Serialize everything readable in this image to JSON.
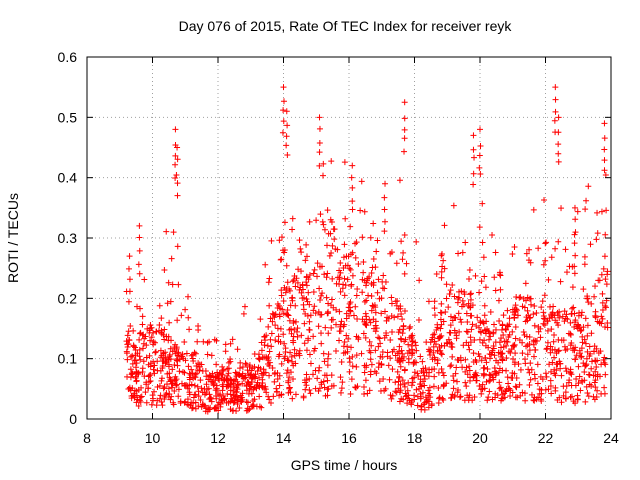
{
  "chart_data": {
    "type": "scatter",
    "title": "Day 076 of 2015, Rate Of TEC Index for receiver reyk",
    "xlabel": "GPS time / hours",
    "ylabel": "ROTI / TECUs",
    "xlim": [
      8,
      24
    ],
    "ylim": [
      0,
      0.6
    ],
    "xticks": [
      8,
      10,
      12,
      14,
      16,
      18,
      20,
      22,
      24
    ],
    "yticks": [
      0,
      0.1,
      0.2,
      0.3,
      0.4,
      0.5,
      0.6
    ],
    "xtick_labels": [
      "8",
      "10",
      "12",
      "14",
      "16",
      "18",
      "20",
      "22",
      "24"
    ],
    "ytick_labels": [
      "0",
      "0.1",
      "0.2",
      "0.3",
      "0.4",
      "0.5",
      "0.6"
    ],
    "grid": true,
    "marker": "+",
    "color": "#ff0000",
    "x_data_range": [
      9.2,
      23.9
    ],
    "envelope": [
      {
        "x": 9.2,
        "typical": 0.08,
        "spread": 0.12
      },
      {
        "x": 10,
        "typical": 0.09,
        "spread": 0.12
      },
      {
        "x": 10.7,
        "typical": 0.08,
        "spread": 0.2
      },
      {
        "x": 11.5,
        "typical": 0.05,
        "spread": 0.09
      },
      {
        "x": 12.5,
        "typical": 0.04,
        "spread": 0.08
      },
      {
        "x": 13.3,
        "typical": 0.07,
        "spread": 0.13
      },
      {
        "x": 14,
        "typical": 0.13,
        "spread": 0.22
      },
      {
        "x": 15,
        "typical": 0.14,
        "spread": 0.2
      },
      {
        "x": 16,
        "typical": 0.16,
        "spread": 0.2
      },
      {
        "x": 17,
        "typical": 0.14,
        "spread": 0.18
      },
      {
        "x": 17.7,
        "typical": 0.1,
        "spread": 0.22
      },
      {
        "x": 18.3,
        "typical": 0.05,
        "spread": 0.15
      },
      {
        "x": 19,
        "typical": 0.13,
        "spread": 0.16
      },
      {
        "x": 20,
        "typical": 0.12,
        "spread": 0.2
      },
      {
        "x": 20.5,
        "typical": 0.09,
        "spread": 0.15
      },
      {
        "x": 21,
        "typical": 0.12,
        "spread": 0.18
      },
      {
        "x": 22,
        "typical": 0.11,
        "spread": 0.2
      },
      {
        "x": 23,
        "typical": 0.1,
        "spread": 0.18
      },
      {
        "x": 23.9,
        "typical": 0.15,
        "spread": 0.25
      }
    ],
    "peaks": [
      {
        "x": 9.3,
        "y": 0.27
      },
      {
        "x": 9.6,
        "y": 0.32
      },
      {
        "x": 10.7,
        "y": 0.48
      },
      {
        "x": 10.75,
        "y": 0.45
      },
      {
        "x": 14.0,
        "y": 0.55
      },
      {
        "x": 14.1,
        "y": 0.51
      },
      {
        "x": 15.1,
        "y": 0.5
      },
      {
        "x": 16.1,
        "y": 0.42
      },
      {
        "x": 17.7,
        "y": 0.525
      },
      {
        "x": 19.8,
        "y": 0.47
      },
      {
        "x": 20.0,
        "y": 0.48
      },
      {
        "x": 22.3,
        "y": 0.55
      },
      {
        "x": 22.4,
        "y": 0.5
      },
      {
        "x": 23.8,
        "y": 0.49
      },
      {
        "x": 17.1,
        "y": 0.39
      },
      {
        "x": 22.9,
        "y": 0.35
      }
    ]
  }
}
